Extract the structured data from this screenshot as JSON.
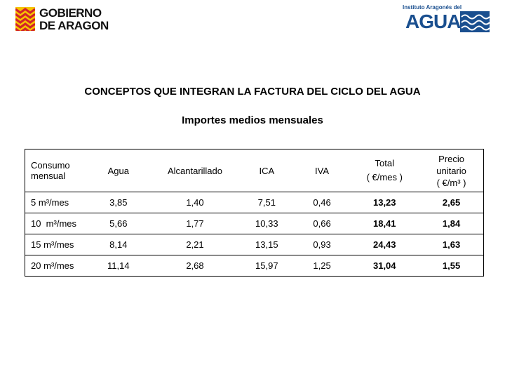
{
  "header": {
    "left_logo_line1": "GOBIERNO",
    "left_logo_line2": "DE ARAGON",
    "right_logo_small": "Instituto Aragonés del",
    "right_logo_big": "AGUA"
  },
  "title": "CONCEPTOS QUE INTEGRAN LA FACTURA DEL CICLO DEL AGUA",
  "subtitle": "Importes medios mensuales",
  "table": {
    "headers": {
      "consumo_line1": "Consumo",
      "consumo_line2": "mensual",
      "agua": "Agua",
      "alcantarillado": "Alcantarillado",
      "ica": "ICA",
      "iva": "IVA",
      "total_line1": "Total",
      "total_line2": "( €/mes )",
      "precio_line1": "Precio",
      "precio_line2": "unitario",
      "precio_line3": "( €/m³ )"
    },
    "rows": [
      {
        "consumo": "5 m³/mes",
        "agua": "3,85",
        "alcantarillado": "1,40",
        "ica": "7,51",
        "iva": "0,46",
        "total": "13,23",
        "precio": "2,65"
      },
      {
        "consumo": "10  m³/mes",
        "agua": "5,66",
        "alcantarillado": "1,77",
        "ica": "10,33",
        "iva": "0,66",
        "total": "18,41",
        "precio": "1,84"
      },
      {
        "consumo": "15 m³/mes",
        "agua": "8,14",
        "alcantarillado": "2,21",
        "ica": "13,15",
        "iva": "0,93",
        "total": "24,43",
        "precio": "1,63"
      },
      {
        "consumo": "20 m³/mes",
        "agua": "11,14",
        "alcantarillado": "2,68",
        "ica": "15,97",
        "iva": "1,25",
        "total": "31,04",
        "precio": "1,55"
      }
    ]
  },
  "colors": {
    "aragon_red": "#d2232a",
    "aragon_yellow": "#f6c400",
    "agua_blue": "#1a4f8f"
  }
}
